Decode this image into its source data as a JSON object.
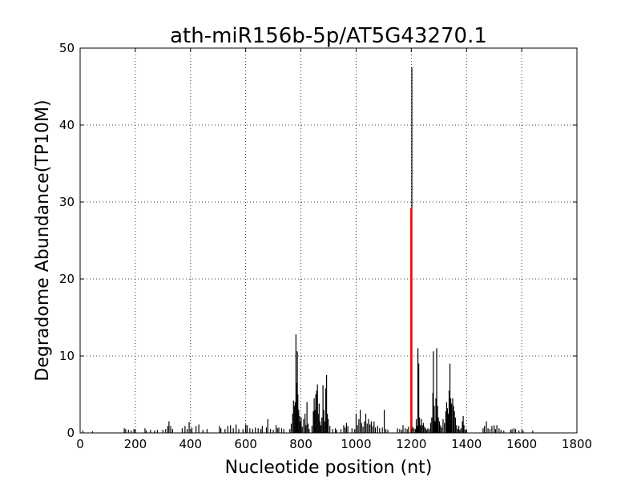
{
  "chart_data": {
    "type": "bar",
    "title": "ath-miR156b-5p/AT5G43270.1",
    "xlabel": "Nucleotide position (nt)",
    "ylabel": "Degradome Abundance(TP10M)",
    "xlim": [
      0,
      1800
    ],
    "ylim": [
      0,
      50
    ],
    "xticks": [
      "0",
      "200",
      "400",
      "600",
      "800",
      "1000",
      "1200",
      "1400",
      "1600",
      "1800"
    ],
    "yticks": [
      "0",
      "10",
      "20",
      "30",
      "40",
      "50"
    ],
    "grid": true,
    "colors": {
      "bars": "#000000",
      "highlight": "#ff0000",
      "grid": "#000000"
    },
    "series": [
      {
        "values": [
          [
            10,
            0.3
          ],
          [
            45,
            0.2
          ],
          [
            160,
            0.6
          ],
          [
            165,
            0.5
          ],
          [
            175,
            0.4
          ],
          [
            185,
            0.3
          ],
          [
            195,
            0.5
          ],
          [
            200,
            0.4
          ],
          [
            235,
            0.6
          ],
          [
            240,
            0.3
          ],
          [
            255,
            0.4
          ],
          [
            270,
            0.3
          ],
          [
            280,
            0.4
          ],
          [
            300,
            0.4
          ],
          [
            310,
            0.5
          ],
          [
            318,
            0.9
          ],
          [
            322,
            1.5
          ],
          [
            328,
            0.9
          ],
          [
            335,
            0.5
          ],
          [
            370,
            0.6
          ],
          [
            380,
            0.9
          ],
          [
            388,
            0.5
          ],
          [
            395,
            1.4
          ],
          [
            405,
            0.7
          ],
          [
            420,
            0.9
          ],
          [
            430,
            1.1
          ],
          [
            445,
            0.4
          ],
          [
            460,
            0.5
          ],
          [
            505,
            0.9
          ],
          [
            510,
            0.6
          ],
          [
            525,
            0.5
          ],
          [
            535,
            0.9
          ],
          [
            545,
            1.0
          ],
          [
            555,
            0.6
          ],
          [
            565,
            1.1
          ],
          [
            575,
            0.5
          ],
          [
            590,
            0.5
          ],
          [
            600,
            1.1
          ],
          [
            605,
            1.0
          ],
          [
            615,
            0.6
          ],
          [
            625,
            0.5
          ],
          [
            635,
            0.7
          ],
          [
            645,
            0.6
          ],
          [
            655,
            0.5
          ],
          [
            660,
            0.9
          ],
          [
            675,
            0.7
          ],
          [
            680,
            1.8
          ],
          [
            690,
            0.5
          ],
          [
            700,
            0.4
          ],
          [
            710,
            1.0
          ],
          [
            715,
            0.6
          ],
          [
            720,
            0.7
          ],
          [
            730,
            0.6
          ],
          [
            738,
            0.5
          ],
          [
            760,
            0.5
          ],
          [
            765,
            1.2
          ],
          [
            770,
            2.5
          ],
          [
            773,
            4.2
          ],
          [
            776,
            3.5
          ],
          [
            779,
            4.0
          ],
          [
            782,
            12.8
          ],
          [
            784,
            6.5
          ],
          [
            787,
            10.6
          ],
          [
            789,
            5.0
          ],
          [
            792,
            3.0
          ],
          [
            795,
            2.2
          ],
          [
            798,
            1.5
          ],
          [
            801,
            2.0
          ],
          [
            805,
            0.8
          ],
          [
            810,
            1.8
          ],
          [
            815,
            2.5
          ],
          [
            818,
            1.0
          ],
          [
            822,
            4.0
          ],
          [
            826,
            1.2
          ],
          [
            830,
            0.5
          ],
          [
            840,
            0.9
          ],
          [
            845,
            2.8
          ],
          [
            848,
            4.5
          ],
          [
            851,
            3.0
          ],
          [
            854,
            5.0
          ],
          [
            857,
            5.5
          ],
          [
            860,
            6.3
          ],
          [
            863,
            2.5
          ],
          [
            866,
            3.8
          ],
          [
            869,
            1.5
          ],
          [
            872,
            1.0
          ],
          [
            876,
            2.0
          ],
          [
            880,
            6.2
          ],
          [
            883,
            3.0
          ],
          [
            886,
            1.5
          ],
          [
            890,
            5.8
          ],
          [
            893,
            7.5
          ],
          [
            896,
            2.5
          ],
          [
            899,
            1.8
          ],
          [
            905,
            0.9
          ],
          [
            915,
            0.5
          ],
          [
            925,
            0.6
          ],
          [
            930,
            0.4
          ],
          [
            945,
            0.5
          ],
          [
            955,
            1.0
          ],
          [
            960,
            0.7
          ],
          [
            965,
            1.3
          ],
          [
            970,
            0.9
          ],
          [
            985,
            0.6
          ],
          [
            995,
            0.5
          ],
          [
            1000,
            2.5
          ],
          [
            1005,
            1.0
          ],
          [
            1010,
            1.8
          ],
          [
            1015,
            3.0
          ],
          [
            1020,
            1.3
          ],
          [
            1025,
            0.8
          ],
          [
            1030,
            1.5
          ],
          [
            1035,
            2.5
          ],
          [
            1040,
            1.2
          ],
          [
            1045,
            1.8
          ],
          [
            1050,
            1.1
          ],
          [
            1055,
            1.5
          ],
          [
            1060,
            0.9
          ],
          [
            1065,
            1.5
          ],
          [
            1070,
            0.7
          ],
          [
            1078,
            0.9
          ],
          [
            1085,
            0.6
          ],
          [
            1095,
            0.7
          ],
          [
            1102,
            3.0
          ],
          [
            1108,
            0.5
          ],
          [
            1115,
            0.4
          ],
          [
            1150,
            0.6
          ],
          [
            1158,
            0.5
          ],
          [
            1165,
            0.4
          ],
          [
            1170,
            1.0
          ],
          [
            1178,
            0.6
          ],
          [
            1185,
            0.5
          ],
          [
            1190,
            0.8
          ],
          [
            1202,
            47.5
          ],
          [
            1205,
            0.8
          ],
          [
            1210,
            0.6
          ],
          [
            1215,
            0.5
          ],
          [
            1218,
            1.8
          ],
          [
            1221,
            0.9
          ],
          [
            1224,
            11.0
          ],
          [
            1227,
            9.0
          ],
          [
            1230,
            2.0
          ],
          [
            1233,
            1.0
          ],
          [
            1237,
            1.8
          ],
          [
            1240,
            1.0
          ],
          [
            1244,
            1.3
          ],
          [
            1248,
            0.8
          ],
          [
            1252,
            0.6
          ],
          [
            1256,
            0.4
          ],
          [
            1260,
            0.6
          ],
          [
            1265,
            0.5
          ],
          [
            1270,
            1.3
          ],
          [
            1274,
            2.0
          ],
          [
            1278,
            5.2
          ],
          [
            1280,
            10.6
          ],
          [
            1283,
            3.5
          ],
          [
            1286,
            1.5
          ],
          [
            1289,
            4.5
          ],
          [
            1292,
            11.0
          ],
          [
            1295,
            3.5
          ],
          [
            1298,
            2.0
          ],
          [
            1302,
            1.5
          ],
          [
            1306,
            1.0
          ],
          [
            1310,
            0.7
          ],
          [
            1315,
            1.8
          ],
          [
            1320,
            1.3
          ],
          [
            1325,
            2.8
          ],
          [
            1328,
            4.0
          ],
          [
            1331,
            3.2
          ],
          [
            1334,
            2.5
          ],
          [
            1337,
            5.5
          ],
          [
            1340,
            9.0
          ],
          [
            1343,
            4.5
          ],
          [
            1346,
            3.8
          ],
          [
            1350,
            4.5
          ],
          [
            1353,
            3.5
          ],
          [
            1356,
            2.8
          ],
          [
            1360,
            2.0
          ],
          [
            1364,
            1.0
          ],
          [
            1368,
            0.5
          ],
          [
            1372,
            0.9
          ],
          [
            1376,
            0.4
          ],
          [
            1380,
            0.6
          ],
          [
            1385,
            1.5
          ],
          [
            1388,
            2.2
          ],
          [
            1391,
            1.0
          ],
          [
            1396,
            0.4
          ],
          [
            1400,
            0.3
          ],
          [
            1460,
            0.6
          ],
          [
            1465,
            0.9
          ],
          [
            1472,
            1.5
          ],
          [
            1478,
            0.6
          ],
          [
            1485,
            0.5
          ],
          [
            1492,
            0.9
          ],
          [
            1500,
            1.0
          ],
          [
            1505,
            0.5
          ],
          [
            1510,
            1.0
          ],
          [
            1518,
            0.6
          ],
          [
            1525,
            0.4
          ],
          [
            1535,
            0.3
          ],
          [
            1560,
            0.4
          ],
          [
            1565,
            0.5
          ],
          [
            1572,
            0.6
          ],
          [
            1578,
            0.5
          ],
          [
            1590,
            0.3
          ],
          [
            1605,
            0.3
          ],
          [
            1640,
            0.3
          ]
        ]
      }
    ],
    "highlight": {
      "x": 1200,
      "y": 29.2
    }
  }
}
